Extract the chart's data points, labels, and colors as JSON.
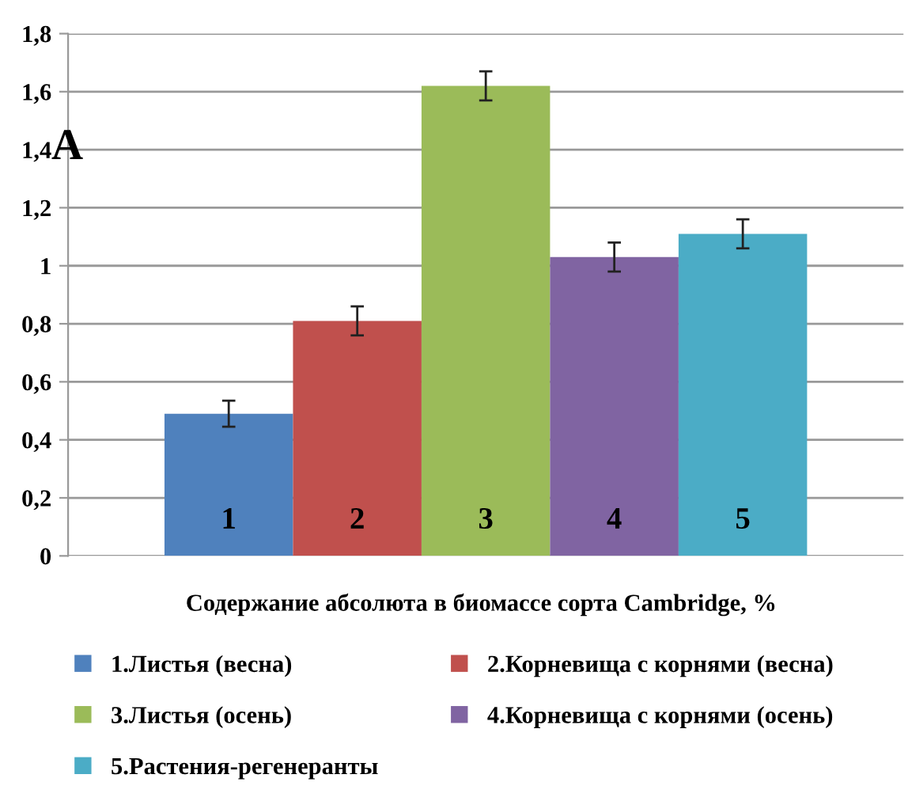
{
  "chart_data": {
    "type": "bar",
    "categories": [
      "1",
      "2",
      "3",
      "4",
      "5"
    ],
    "series": [
      {
        "name": "1.Листья (весна)",
        "color": "#4f81bd",
        "values": [
          0.49,
          null,
          null,
          null,
          null
        ],
        "errors": [
          0.045,
          null,
          null,
          null,
          null
        ]
      },
      {
        "name": "2.Корневища с корнями (весна)",
        "color": "#c0504d",
        "values": [
          null,
          0.81,
          null,
          null,
          null
        ],
        "errors": [
          null,
          0.05,
          null,
          null,
          null
        ]
      },
      {
        "name": "3.Листья (осень)",
        "color": "#9bbb59",
        "values": [
          null,
          null,
          1.62,
          null,
          null
        ],
        "errors": [
          null,
          null,
          0.05,
          null,
          null
        ]
      },
      {
        "name": "4.Корневища с корнями (осень)",
        "color": "#8064a2",
        "values": [
          null,
          null,
          null,
          1.03,
          null
        ],
        "errors": [
          null,
          null,
          null,
          0.05,
          null
        ]
      },
      {
        "name": "5.Растения-регенеранты",
        "color": "#4bacc6",
        "values": [
          null,
          null,
          null,
          null,
          1.11
        ],
        "errors": [
          null,
          null,
          null,
          null,
          0.05
        ]
      }
    ],
    "xlabel": "Содержание абсолюта в биомассе сорта Cambridge, %",
    "annotations": [
      "A"
    ],
    "ylim": [
      0,
      1.8
    ],
    "yticks": [
      {
        "value": 0,
        "label": "0"
      },
      {
        "value": 0.2,
        "label": "0,2"
      },
      {
        "value": 0.4,
        "label": "0,4"
      },
      {
        "value": 0.6,
        "label": "0,6"
      },
      {
        "value": 0.8,
        "label": "0,8"
      },
      {
        "value": 1,
        "label": "1"
      },
      {
        "value": 1.2,
        "label": "1,2"
      },
      {
        "value": 1.4,
        "label": "1,4"
      },
      {
        "value": 1.6,
        "label": "1,6"
      },
      {
        "value": 1.8,
        "label": "1,8"
      }
    ],
    "grid": "y",
    "legend": "bottom"
  }
}
